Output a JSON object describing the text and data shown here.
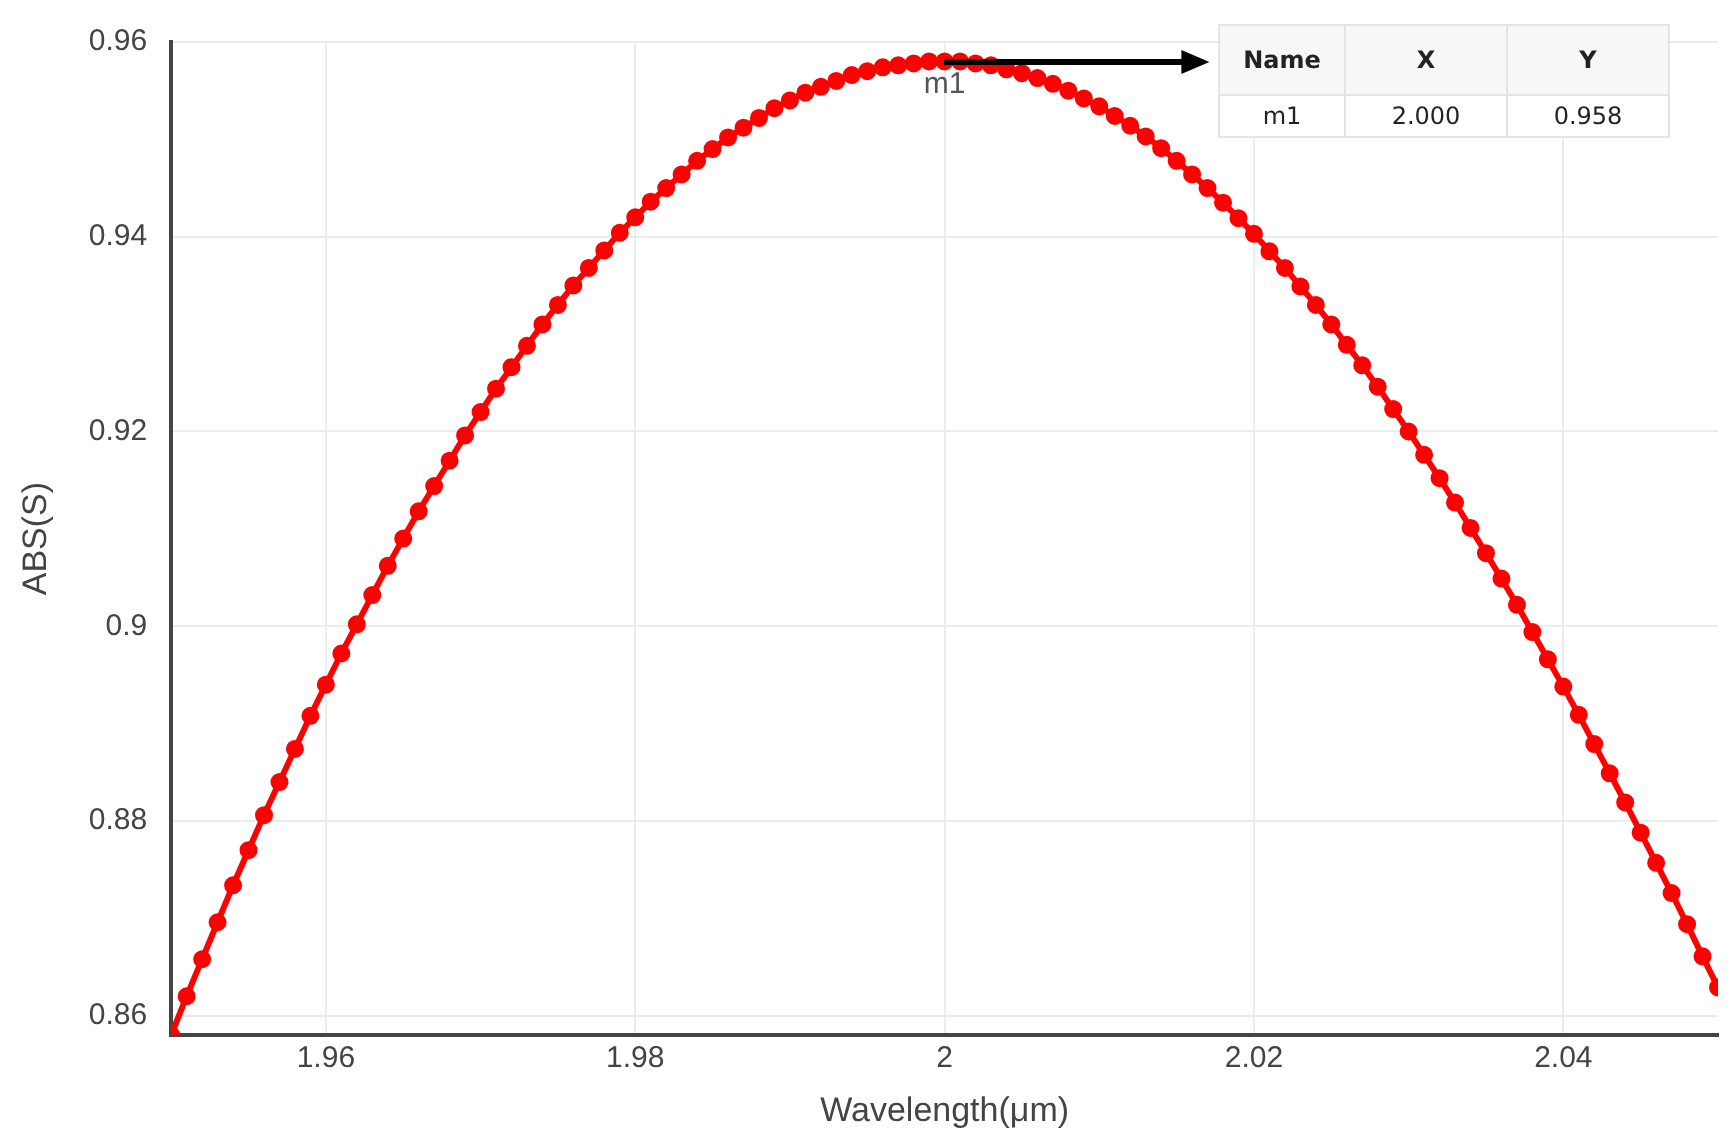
{
  "chart_data": {
    "type": "line",
    "xlabel": "Wavelength(μm)",
    "ylabel": "ABS(S)",
    "xlim": [
      1.95,
      2.05
    ],
    "xticks": [
      1.96,
      1.98,
      2,
      2.02,
      2.04
    ],
    "ylim": [
      0.858,
      0.96
    ],
    "yticks": [
      0.86,
      0.88,
      0.9,
      0.92,
      0.94,
      0.96
    ],
    "grid": true,
    "legend": false,
    "marker": "circle",
    "line_style": "solid",
    "x": [
      1.95,
      1.951,
      1.952,
      1.953,
      1.954,
      1.955,
      1.956,
      1.957,
      1.958,
      1.959,
      1.96,
      1.961,
      1.962,
      1.963,
      1.964,
      1.965,
      1.966,
      1.967,
      1.968,
      1.969,
      1.97,
      1.971,
      1.972,
      1.973,
      1.974,
      1.975,
      1.976,
      1.977,
      1.978,
      1.979,
      1.98,
      1.981,
      1.982,
      1.983,
      1.984,
      1.985,
      1.986,
      1.987,
      1.988,
      1.989,
      1.99,
      1.991,
      1.992,
      1.993,
      1.994,
      1.995,
      1.996,
      1.997,
      1.998,
      1.999,
      2,
      2.001,
      2.002,
      2.003,
      2.004,
      2.005,
      2.006,
      2.007,
      2.008,
      2.009,
      2.01,
      2.011,
      2.012,
      2.013,
      2.014,
      2.015,
      2.016,
      2.017,
      2.018,
      2.019,
      2.02,
      2.021,
      2.022,
      2.023,
      2.024,
      2.025,
      2.026,
      2.027,
      2.028,
      2.029,
      2.03,
      2.031,
      2.032,
      2.033,
      2.034,
      2.035,
      2.036,
      2.037,
      2.038,
      2.039,
      2.04,
      2.041,
      2.042,
      2.043,
      2.044,
      2.045,
      2.046,
      2.047,
      2.048,
      2.049,
      2.05
    ],
    "series": [
      {
        "color": "#ff0000",
        "values": [
          0.858,
          0.862,
          0.8658,
          0.8696,
          0.8734,
          0.877,
          0.8806,
          0.884,
          0.8874,
          0.8908,
          0.894,
          0.8972,
          0.9002,
          0.9032,
          0.9062,
          0.909,
          0.9118,
          0.9144,
          0.917,
          0.9196,
          0.922,
          0.9244,
          0.9266,
          0.9288,
          0.931,
          0.933,
          0.935,
          0.9368,
          0.9386,
          0.9404,
          0.942,
          0.9436,
          0.945,
          0.9464,
          0.9478,
          0.949,
          0.9502,
          0.9512,
          0.9522,
          0.9532,
          0.954,
          0.9548,
          0.9554,
          0.956,
          0.9566,
          0.957,
          0.9574,
          0.9576,
          0.9578,
          0.958,
          0.958,
          0.958,
          0.9578,
          0.9576,
          0.9572,
          0.9568,
          0.9563,
          0.9557,
          0.955,
          0.9542,
          0.9534,
          0.9524,
          0.9514,
          0.9503,
          0.9491,
          0.9478,
          0.9464,
          0.945,
          0.9435,
          0.9419,
          0.9403,
          0.9385,
          0.9368,
          0.9349,
          0.933,
          0.931,
          0.9289,
          0.9268,
          0.9246,
          0.9223,
          0.92,
          0.9176,
          0.9152,
          0.9127,
          0.9101,
          0.9075,
          0.9049,
          0.9022,
          0.8994,
          0.8966,
          0.8938,
          0.8909,
          0.8879,
          0.8849,
          0.8819,
          0.8788,
          0.8757,
          0.8726,
          0.8694,
          0.8661,
          0.8629
        ]
      }
    ],
    "annotations": [
      {
        "text": "m1",
        "x": 2,
        "y": 0.958
      },
      "Name",
      "X",
      "Y",
      "m1",
      "2.000",
      "0.958"
    ]
  }
}
